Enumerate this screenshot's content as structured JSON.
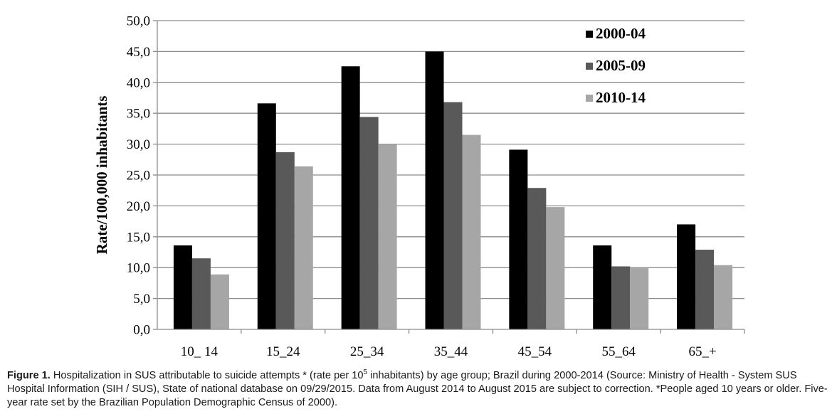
{
  "chart_data": {
    "type": "bar",
    "title": "",
    "xlabel": "",
    "ylabel": "Rate/100,000 inhabitants",
    "ylim": [
      0,
      50
    ],
    "yticks": [
      "0,0",
      "5,0",
      "10,0",
      "15,0",
      "20,0",
      "25,0",
      "30,0",
      "35,0",
      "40,0",
      "45,0",
      "50,0"
    ],
    "categories": [
      "10_ 14",
      "15_24",
      "25_34",
      "35_44",
      "45_54",
      "55_64",
      "65_+"
    ],
    "series": [
      {
        "name": "2000-04",
        "color": "#000000",
        "values": [
          13.6,
          36.6,
          42.6,
          45.0,
          29.1,
          13.6,
          17.0
        ]
      },
      {
        "name": "2005-09",
        "color": "#595959",
        "values": [
          11.5,
          28.7,
          34.4,
          36.8,
          22.9,
          10.2,
          12.9
        ]
      },
      {
        "name": "2010-14",
        "color": "#a6a6a6",
        "values": [
          8.9,
          26.4,
          30.0,
          31.5,
          19.8,
          9.9,
          10.4
        ]
      }
    ],
    "grid": true,
    "legend_position": "top-right"
  },
  "caption": {
    "label": "Figure 1.",
    "text_before_sup": " Hospitalization in SUS attributable to suicide attempts * (rate per 10",
    "sup": "5",
    "text_after_sup": " inhabitants) by age group; Brazil during 2000-2014 (Source: Ministry of Health - System SUS Hospital Information (SIH / SUS), State of national database on 09/29/2015. Data from August 2014 to August 2015 are subject to correction. *People aged 10 years or older. Five-year rate set by the Brazilian Population Demographic Census of 2000)."
  }
}
